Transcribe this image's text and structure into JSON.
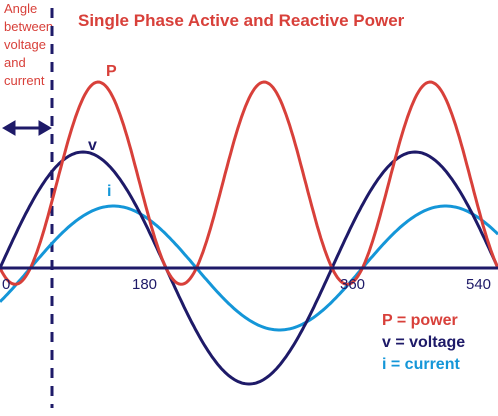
{
  "title": "Single Phase Active and Reactive Power",
  "angle_note": [
    "Angle",
    "between",
    "voltage",
    "and",
    "current"
  ],
  "labels": {
    "power": "P",
    "voltage": "v",
    "current": "i"
  },
  "ticks": [
    "0",
    "180",
    "360",
    "540"
  ],
  "legend": [
    {
      "text": "P = power",
      "color": "#d8403a"
    },
    {
      "text": "v = voltage",
      "color": "#1e1a68"
    },
    {
      "text": "i = current",
      "color": "#1496d8"
    }
  ],
  "colors": {
    "power": "#d8403a",
    "voltage": "#1e1a68",
    "current": "#1496d8",
    "axis": "#1e1a68",
    "dashed_line": "#1e1a68",
    "arrow": "#1e1a68",
    "title": "#d8403a"
  },
  "chart_data": {
    "type": "line",
    "x_range_deg": [
      0,
      540
    ],
    "phase_shift_deg": 33,
    "series": [
      {
        "key": "voltage",
        "amplitude": 1.0,
        "function": "sin(x)"
      },
      {
        "key": "current",
        "amplitude": 0.55,
        "function": "sin(x - phase_shift)"
      },
      {
        "key": "power",
        "function": "v * i (scaled)"
      }
    ]
  }
}
